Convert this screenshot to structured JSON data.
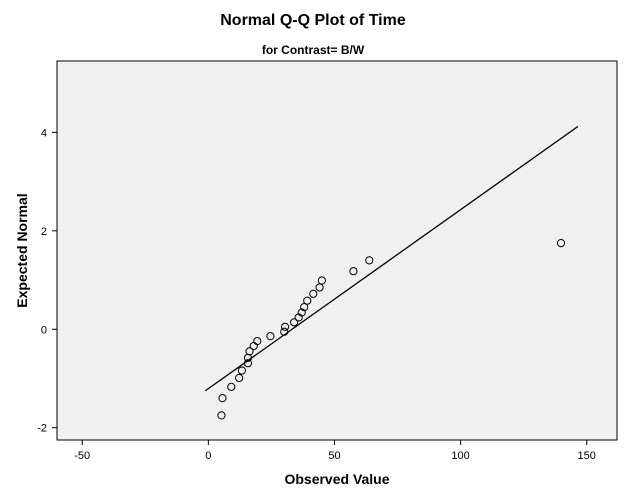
{
  "chart_data": {
    "type": "scatter",
    "title": "Normal Q-Q Plot of Time",
    "subtitle": "for Contrast= B/W",
    "xlabel": "Observed Value",
    "ylabel": "Expected Normal",
    "xlim": [
      -60,
      162
    ],
    "ylim": [
      -2.25,
      5.45
    ],
    "xticks": [
      -50,
      0,
      50,
      100,
      150
    ],
    "yticks": [
      -2,
      0,
      2,
      4
    ],
    "grid": false,
    "points": [
      {
        "x": 5.2,
        "y": -1.75
      },
      {
        "x": 5.6,
        "y": -1.4
      },
      {
        "x": 9.1,
        "y": -1.17
      },
      {
        "x": 12.2,
        "y": -0.99
      },
      {
        "x": 13.3,
        "y": -0.84
      },
      {
        "x": 15.7,
        "y": -0.69
      },
      {
        "x": 15.7,
        "y": -0.58
      },
      {
        "x": 16.3,
        "y": -0.45
      },
      {
        "x": 18.0,
        "y": -0.34
      },
      {
        "x": 19.4,
        "y": -0.24
      },
      {
        "x": 24.6,
        "y": -0.14
      },
      {
        "x": 30.1,
        "y": -0.05
      },
      {
        "x": 30.4,
        "y": 0.05
      },
      {
        "x": 34.0,
        "y": 0.14
      },
      {
        "x": 35.8,
        "y": 0.24
      },
      {
        "x": 37.0,
        "y": 0.34
      },
      {
        "x": 38.0,
        "y": 0.45
      },
      {
        "x": 39.2,
        "y": 0.58
      },
      {
        "x": 41.6,
        "y": 0.72
      },
      {
        "x": 44.1,
        "y": 0.85
      },
      {
        "x": 45.0,
        "y": 0.99
      },
      {
        "x": 57.5,
        "y": 1.18
      },
      {
        "x": 63.8,
        "y": 1.4
      },
      {
        "x": 139.8,
        "y": 1.75
      }
    ],
    "reference_line": {
      "x": [
        -1.2,
        146.5
      ],
      "y": [
        -1.25,
        4.12
      ]
    }
  }
}
